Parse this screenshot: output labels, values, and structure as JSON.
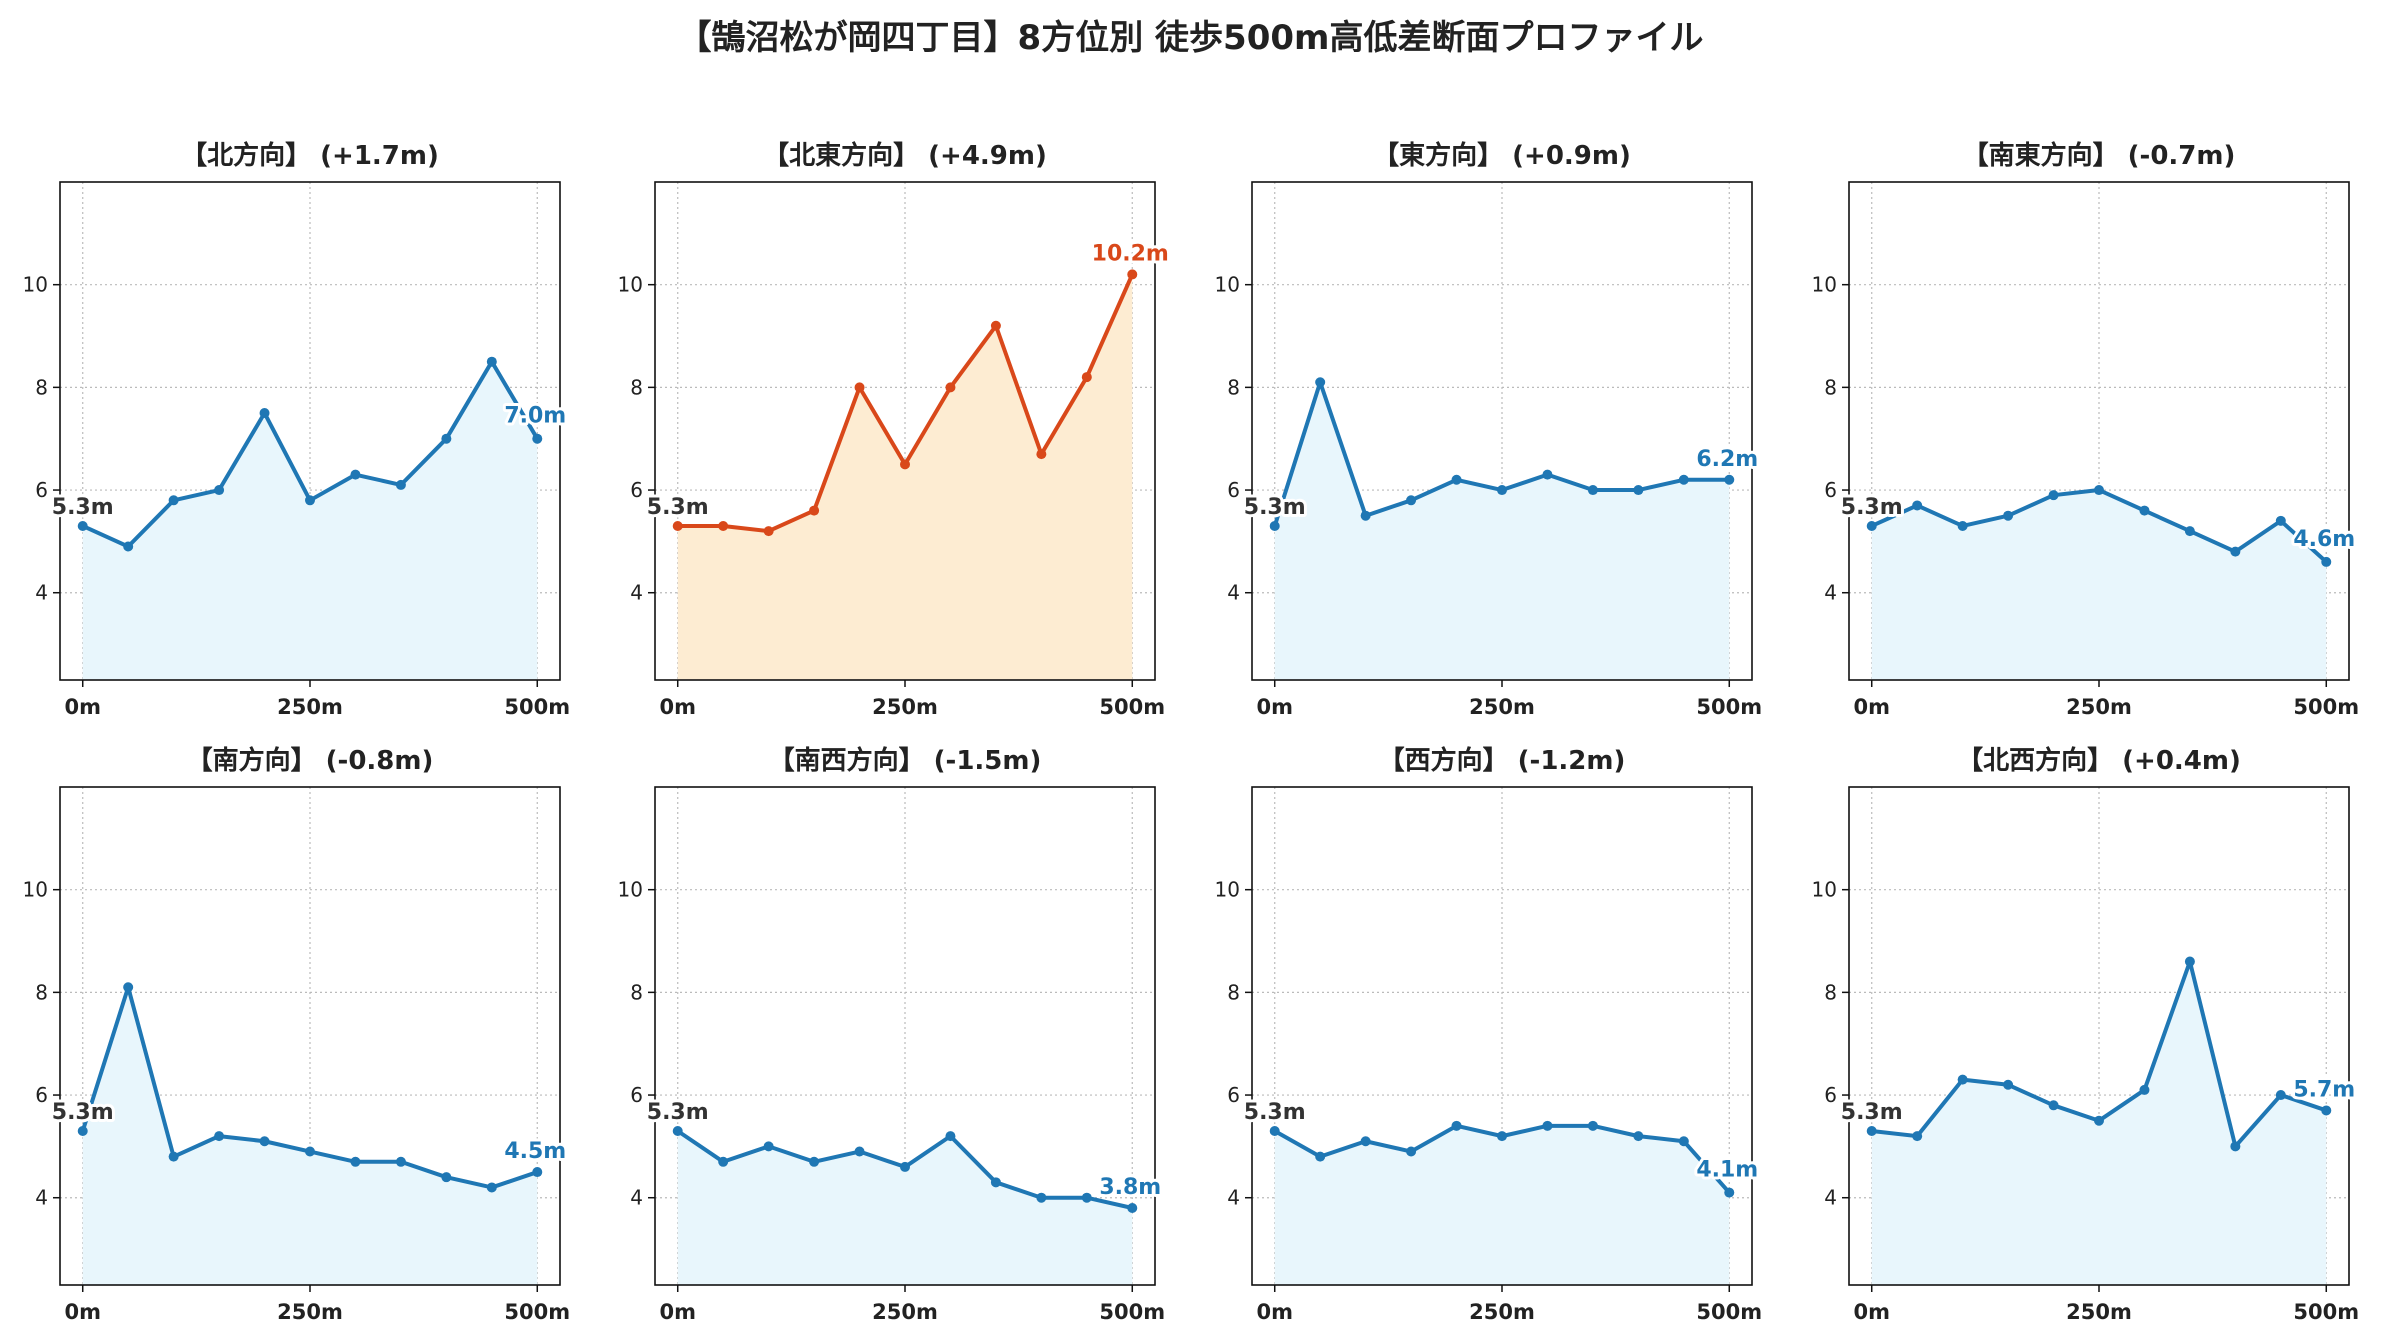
{
  "title": "【鵠沼松が岡四丁目】8方位別 徒歩500m高低差断面プロファイル",
  "colors": {
    "normal_line": "#1f77b4",
    "normal_fill": "#e8f6fc",
    "highlight_line": "#d9481a",
    "highlight_fill": "#fdecd2",
    "start_label": "#333333"
  },
  "chart_data": [
    {
      "type": "area",
      "title": "【北方向】 (+1.7m)",
      "highlight": false,
      "x": [
        0,
        50,
        100,
        150,
        200,
        250,
        300,
        350,
        400,
        450,
        500
      ],
      "y": [
        5.3,
        4.9,
        5.8,
        6.0,
        7.5,
        5.8,
        6.3,
        6.1,
        7.0,
        8.5,
        7.0
      ],
      "start_label": "5.3m",
      "end_label": "7.0m",
      "xticks": [
        "0m",
        "250m",
        "500m"
      ],
      "yticks": [
        4,
        6,
        8,
        10
      ],
      "xlim": [
        -25,
        525
      ],
      "ylim": [
        2.3,
        12
      ],
      "grid": true
    },
    {
      "type": "area",
      "title": "【北東方向】 (+4.9m)",
      "highlight": true,
      "x": [
        0,
        50,
        100,
        150,
        200,
        250,
        300,
        350,
        400,
        450,
        500
      ],
      "y": [
        5.3,
        5.3,
        5.2,
        5.6,
        8.0,
        6.5,
        8.0,
        9.2,
        6.7,
        8.2,
        10.2
      ],
      "start_label": "5.3m",
      "end_label": "10.2m",
      "xticks": [
        "0m",
        "250m",
        "500m"
      ],
      "yticks": [
        4,
        6,
        8,
        10
      ],
      "xlim": [
        -25,
        525
      ],
      "ylim": [
        2.3,
        12
      ],
      "grid": true
    },
    {
      "type": "area",
      "title": "【東方向】 (+0.9m)",
      "highlight": false,
      "x": [
        0,
        50,
        100,
        150,
        200,
        250,
        300,
        350,
        400,
        450,
        500
      ],
      "y": [
        5.3,
        8.1,
        5.5,
        5.8,
        6.2,
        6.0,
        6.3,
        6.0,
        6.0,
        6.2,
        6.2
      ],
      "start_label": "5.3m",
      "end_label": "6.2m",
      "xticks": [
        "0m",
        "250m",
        "500m"
      ],
      "yticks": [
        4,
        6,
        8,
        10
      ],
      "xlim": [
        -25,
        525
      ],
      "ylim": [
        2.3,
        12
      ],
      "grid": true
    },
    {
      "type": "area",
      "title": "【南東方向】 (-0.7m)",
      "highlight": false,
      "x": [
        0,
        50,
        100,
        150,
        200,
        250,
        300,
        350,
        400,
        450,
        500
      ],
      "y": [
        5.3,
        5.7,
        5.3,
        5.5,
        5.9,
        6.0,
        5.6,
        5.2,
        4.8,
        5.4,
        4.6
      ],
      "start_label": "5.3m",
      "end_label": "4.6m",
      "xticks": [
        "0m",
        "250m",
        "500m"
      ],
      "yticks": [
        4,
        6,
        8,
        10
      ],
      "xlim": [
        -25,
        525
      ],
      "ylim": [
        2.3,
        12
      ],
      "grid": true
    },
    {
      "type": "area",
      "title": "【南方向】 (-0.8m)",
      "highlight": false,
      "x": [
        0,
        50,
        100,
        150,
        200,
        250,
        300,
        350,
        400,
        450,
        500
      ],
      "y": [
        5.3,
        8.1,
        4.8,
        5.2,
        5.1,
        4.9,
        4.7,
        4.7,
        4.4,
        4.2,
        4.5
      ],
      "start_label": "5.3m",
      "end_label": "4.5m",
      "xticks": [
        "0m",
        "250m",
        "500m"
      ],
      "yticks": [
        4,
        6,
        8,
        10
      ],
      "xlim": [
        -25,
        525
      ],
      "ylim": [
        2.3,
        12
      ],
      "grid": true
    },
    {
      "type": "area",
      "title": "【南西方向】 (-1.5m)",
      "highlight": false,
      "x": [
        0,
        50,
        100,
        150,
        200,
        250,
        300,
        350,
        400,
        450,
        500
      ],
      "y": [
        5.3,
        4.7,
        5.0,
        4.7,
        4.9,
        4.6,
        5.2,
        4.3,
        4.0,
        4.0,
        3.8
      ],
      "start_label": "5.3m",
      "end_label": "3.8m",
      "xticks": [
        "0m",
        "250m",
        "500m"
      ],
      "yticks": [
        4,
        6,
        8,
        10
      ],
      "xlim": [
        -25,
        525
      ],
      "ylim": [
        2.3,
        12
      ],
      "grid": true
    },
    {
      "type": "area",
      "title": "【西方向】 (-1.2m)",
      "highlight": false,
      "x": [
        0,
        50,
        100,
        150,
        200,
        250,
        300,
        350,
        400,
        450,
        500
      ],
      "y": [
        5.3,
        4.8,
        5.1,
        4.9,
        5.4,
        5.2,
        5.4,
        5.4,
        5.2,
        5.1,
        4.1
      ],
      "start_label": "5.3m",
      "end_label": "4.1m",
      "xticks": [
        "0m",
        "250m",
        "500m"
      ],
      "yticks": [
        4,
        6,
        8,
        10
      ],
      "xlim": [
        -25,
        525
      ],
      "ylim": [
        2.3,
        12
      ],
      "grid": true
    },
    {
      "type": "area",
      "title": "【北西方向】 (+0.4m)",
      "highlight": false,
      "x": [
        0,
        50,
        100,
        150,
        200,
        250,
        300,
        350,
        400,
        450,
        500
      ],
      "y": [
        5.3,
        5.2,
        6.3,
        6.2,
        5.8,
        5.5,
        6.1,
        8.6,
        5.0,
        6.0,
        5.7
      ],
      "start_label": "5.3m",
      "end_label": "5.7m",
      "xticks": [
        "0m",
        "250m",
        "500m"
      ],
      "yticks": [
        4,
        6,
        8,
        10
      ],
      "xlim": [
        -25,
        525
      ],
      "ylim": [
        2.3,
        12
      ],
      "grid": true
    }
  ]
}
